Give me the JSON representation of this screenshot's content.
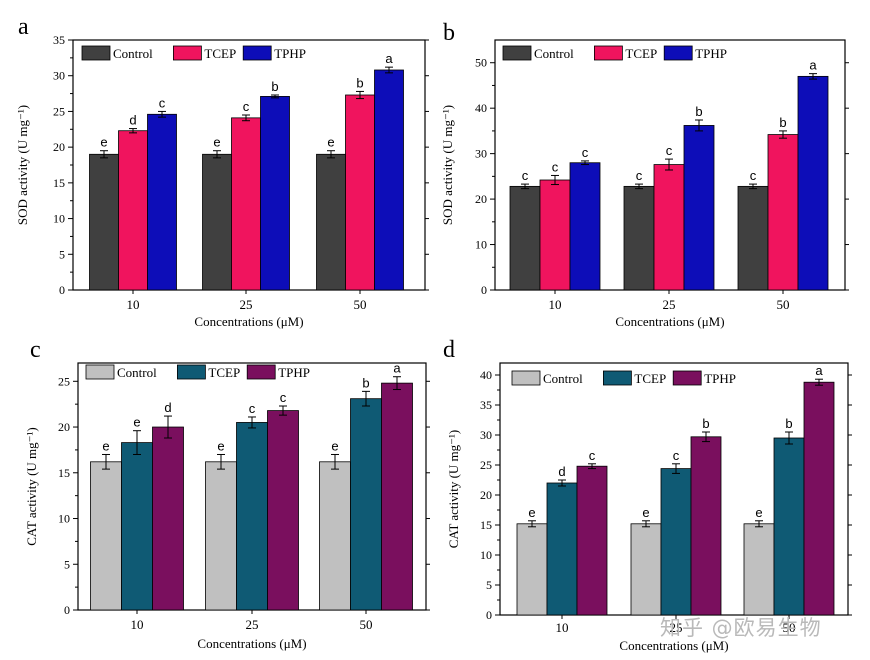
{
  "watermark": "知乎 @欧易生物",
  "chart_data": [
    {
      "panel": "a",
      "type": "bar",
      "categories": [
        "10",
        "25",
        "50"
      ],
      "series": [
        {
          "name": "Control",
          "color": "#404040",
          "values": [
            19.0,
            19.0,
            19.0
          ],
          "errors": [
            0.5,
            0.5,
            0.5
          ],
          "letters": [
            "e",
            "e",
            "e"
          ]
        },
        {
          "name": "TCEP",
          "color": "#f0145e",
          "values": [
            22.3,
            24.1,
            27.3
          ],
          "errors": [
            0.3,
            0.4,
            0.5
          ],
          "letters": [
            "d",
            "c",
            "b"
          ]
        },
        {
          "name": "TPHP",
          "color": "#0d0db8",
          "values": [
            24.6,
            27.1,
            30.8
          ],
          "errors": [
            0.4,
            0.2,
            0.4
          ],
          "letters": [
            "c",
            "b",
            "a"
          ]
        }
      ],
      "ylim": [
        0,
        35
      ],
      "yticks": [
        0,
        5,
        10,
        15,
        20,
        25,
        30,
        35
      ],
      "xlabel": "Concentrations (μM)",
      "ylabel": "SOD activity (U mg⁻¹)",
      "legend": "top-left"
    },
    {
      "panel": "b",
      "type": "bar",
      "categories": [
        "10",
        "25",
        "50"
      ],
      "series": [
        {
          "name": "Control",
          "color": "#404040",
          "values": [
            22.8,
            22.8,
            22.8
          ],
          "errors": [
            0.5,
            0.5,
            0.5
          ],
          "letters": [
            "c",
            "c",
            "c"
          ]
        },
        {
          "name": "TCEP",
          "color": "#f0145e",
          "values": [
            24.2,
            27.6,
            34.2
          ],
          "errors": [
            1.0,
            1.2,
            0.8
          ],
          "letters": [
            "c",
            "c",
            "b"
          ]
        },
        {
          "name": "TPHP",
          "color": "#0d0db8",
          "values": [
            28.0,
            36.2,
            47.0
          ],
          "errors": [
            0.4,
            1.2,
            0.6
          ],
          "letters": [
            "c",
            "b",
            "a"
          ]
        }
      ],
      "ylim": [
        0,
        55
      ],
      "yticks": [
        0,
        10,
        20,
        30,
        40,
        50
      ],
      "xlabel": "Concentrations (μM)",
      "ylabel": "SOD activity (U mg⁻¹)",
      "legend": "top-left"
    },
    {
      "panel": "c",
      "type": "bar",
      "categories": [
        "10",
        "25",
        "50"
      ],
      "series": [
        {
          "name": "Control",
          "color": "#c0c0c0",
          "values": [
            16.2,
            16.2,
            16.2
          ],
          "errors": [
            0.8,
            0.8,
            0.8
          ],
          "letters": [
            "e",
            "e",
            "e"
          ]
        },
        {
          "name": "TCEP",
          "color": "#0f5a74",
          "values": [
            18.3,
            20.5,
            23.1
          ],
          "errors": [
            1.3,
            0.6,
            0.8
          ],
          "letters": [
            "e",
            "c",
            "b"
          ]
        },
        {
          "name": "TPHP",
          "color": "#7a0f5e",
          "values": [
            20.0,
            21.8,
            24.8
          ],
          "errors": [
            1.2,
            0.5,
            0.7
          ],
          "letters": [
            "d",
            "c",
            "a"
          ]
        }
      ],
      "ylim": [
        0,
        27
      ],
      "yticks": [
        0,
        5,
        10,
        15,
        20,
        25
      ],
      "xlabel": "Concentrations (μM)",
      "ylabel": "CAT activity (U mg⁻¹)",
      "legend": "top-left"
    },
    {
      "panel": "d",
      "type": "bar",
      "categories": [
        "10",
        "25",
        "50"
      ],
      "series": [
        {
          "name": "Control",
          "color": "#c0c0c0",
          "values": [
            15.2,
            15.2,
            15.2
          ],
          "errors": [
            0.5,
            0.5,
            0.5
          ],
          "letters": [
            "e",
            "e",
            "e"
          ]
        },
        {
          "name": "TCEP",
          "color": "#0f5a74",
          "values": [
            22.0,
            24.4,
            29.5
          ],
          "errors": [
            0.5,
            0.8,
            1.0
          ],
          "letters": [
            "d",
            "c",
            "b"
          ]
        },
        {
          "name": "TPHP",
          "color": "#7a0f5e",
          "values": [
            24.8,
            29.7,
            38.8
          ],
          "errors": [
            0.4,
            0.8,
            0.5
          ],
          "letters": [
            "c",
            "b",
            "a"
          ]
        }
      ],
      "ylim": [
        0,
        42
      ],
      "yticks": [
        0,
        5,
        10,
        15,
        20,
        25,
        30,
        35,
        40
      ],
      "xlabel": "Concentrations (μM)",
      "ylabel": "CAT activity (U mg⁻¹)",
      "legend": "top-left"
    }
  ]
}
